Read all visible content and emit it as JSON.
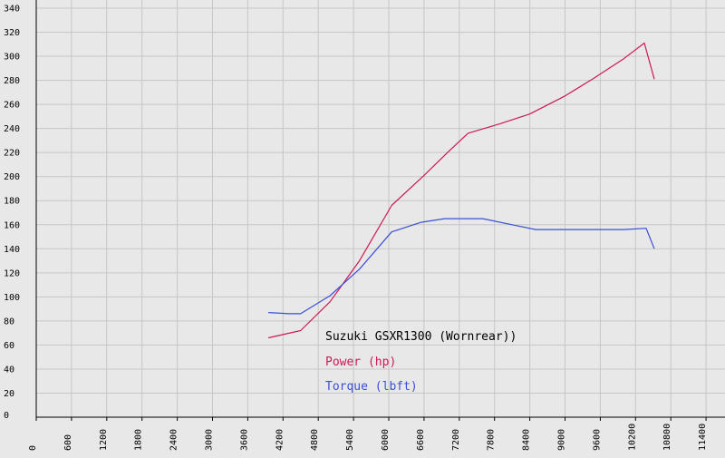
{
  "chart_data": {
    "type": "line",
    "title": "Suzuki GSXR1300 (Wornrear))",
    "xlabel": "",
    "ylabel": "",
    "xlim": [
      0,
      12000
    ],
    "ylim": [
      0,
      340
    ],
    "grid": true,
    "legend_position": "center-bottom",
    "x_ticks": [
      "0",
      "600",
      "1200",
      "1800",
      "2400",
      "3000",
      "3600",
      "4200",
      "4800",
      "5400",
      "6000",
      "6600",
      "7200",
      "7800",
      "8400",
      "9000",
      "9600",
      "10200",
      "10800",
      "11400"
    ],
    "y_ticks": [
      "0",
      "20",
      "40",
      "60",
      "80",
      "100",
      "120",
      "140",
      "160",
      "180",
      "200",
      "220",
      "240",
      "260",
      "280",
      "300",
      "320",
      "340"
    ],
    "series": [
      {
        "name": "Power (hp)",
        "color": "#cc1a55",
        "x": [
          3950,
          4500,
          5000,
          5500,
          6050,
          6600,
          7000,
          7350,
          7900,
          8400,
          9000,
          9500,
          10000,
          10350,
          10520
        ],
        "y": [
          66,
          72,
          96,
          130,
          176,
          201,
          220,
          236,
          244,
          252,
          267,
          282,
          298,
          311,
          281
        ]
      },
      {
        "name": "Torque (lbft)",
        "color": "#3a4fd6",
        "x": [
          3950,
          4300,
          4500,
          5000,
          5500,
          6050,
          6550,
          6950,
          7200,
          7600,
          8100,
          8500,
          9000,
          9500,
          10000,
          10380,
          10520
        ],
        "y": [
          87,
          86,
          86,
          101,
          123,
          154,
          162,
          165,
          165,
          165,
          160,
          156,
          156,
          156,
          156,
          157,
          140
        ]
      }
    ]
  }
}
